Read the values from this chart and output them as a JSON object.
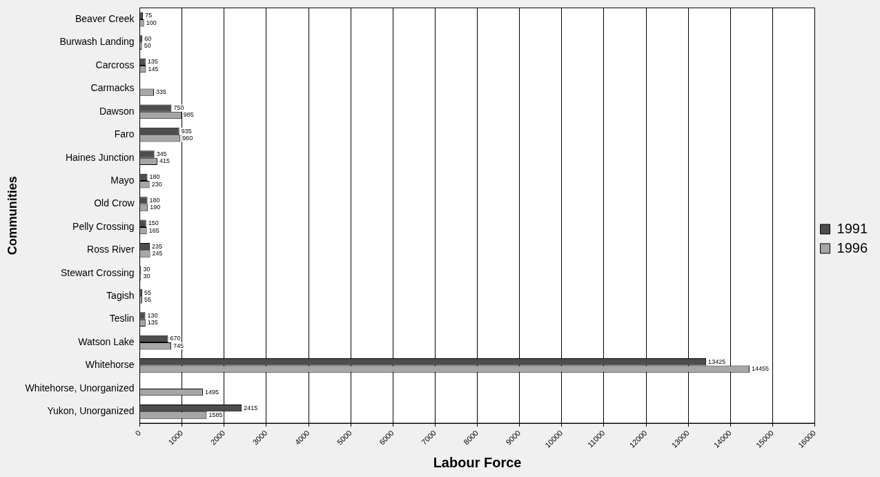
{
  "chart_data": {
    "type": "bar",
    "orientation": "horizontal",
    "xlabel": "Labour Force",
    "ylabel": "Communities",
    "categories": [
      "Beaver Creek",
      "Burwash Landing",
      "Carcross",
      "Carmacks",
      "Dawson",
      "Faro",
      "Haines Junction",
      "Mayo",
      "Old Crow",
      "Pelly Crossing",
      "Ross River",
      "Stewart Crossing",
      "Tagish",
      "Teslin",
      "Watson Lake",
      "Whitehorse",
      "Whitehorse, Unorganized",
      "Yukon, Unorganized"
    ],
    "series": [
      {
        "name": "1991",
        "color": "#4d4d4d",
        "values": [
          75,
          60,
          135,
          null,
          750,
          935,
          345,
          180,
          180,
          150,
          235,
          30,
          55,
          130,
          670,
          13425,
          null,
          2415
        ]
      },
      {
        "name": "1996",
        "color": "#a6a6a6",
        "values": [
          100,
          50,
          145,
          335,
          985,
          960,
          415,
          230,
          190,
          165,
          245,
          30,
          55,
          135,
          745,
          14455,
          1495,
          1585
        ]
      }
    ],
    "xlim": [
      0,
      16000
    ],
    "xticks": [
      0,
      1000,
      2000,
      3000,
      4000,
      5000,
      6000,
      7000,
      8000,
      9000,
      10000,
      11000,
      12000,
      13000,
      14000,
      15000,
      16000
    ],
    "grid": "x",
    "legend": "right",
    "data_labels": true
  }
}
